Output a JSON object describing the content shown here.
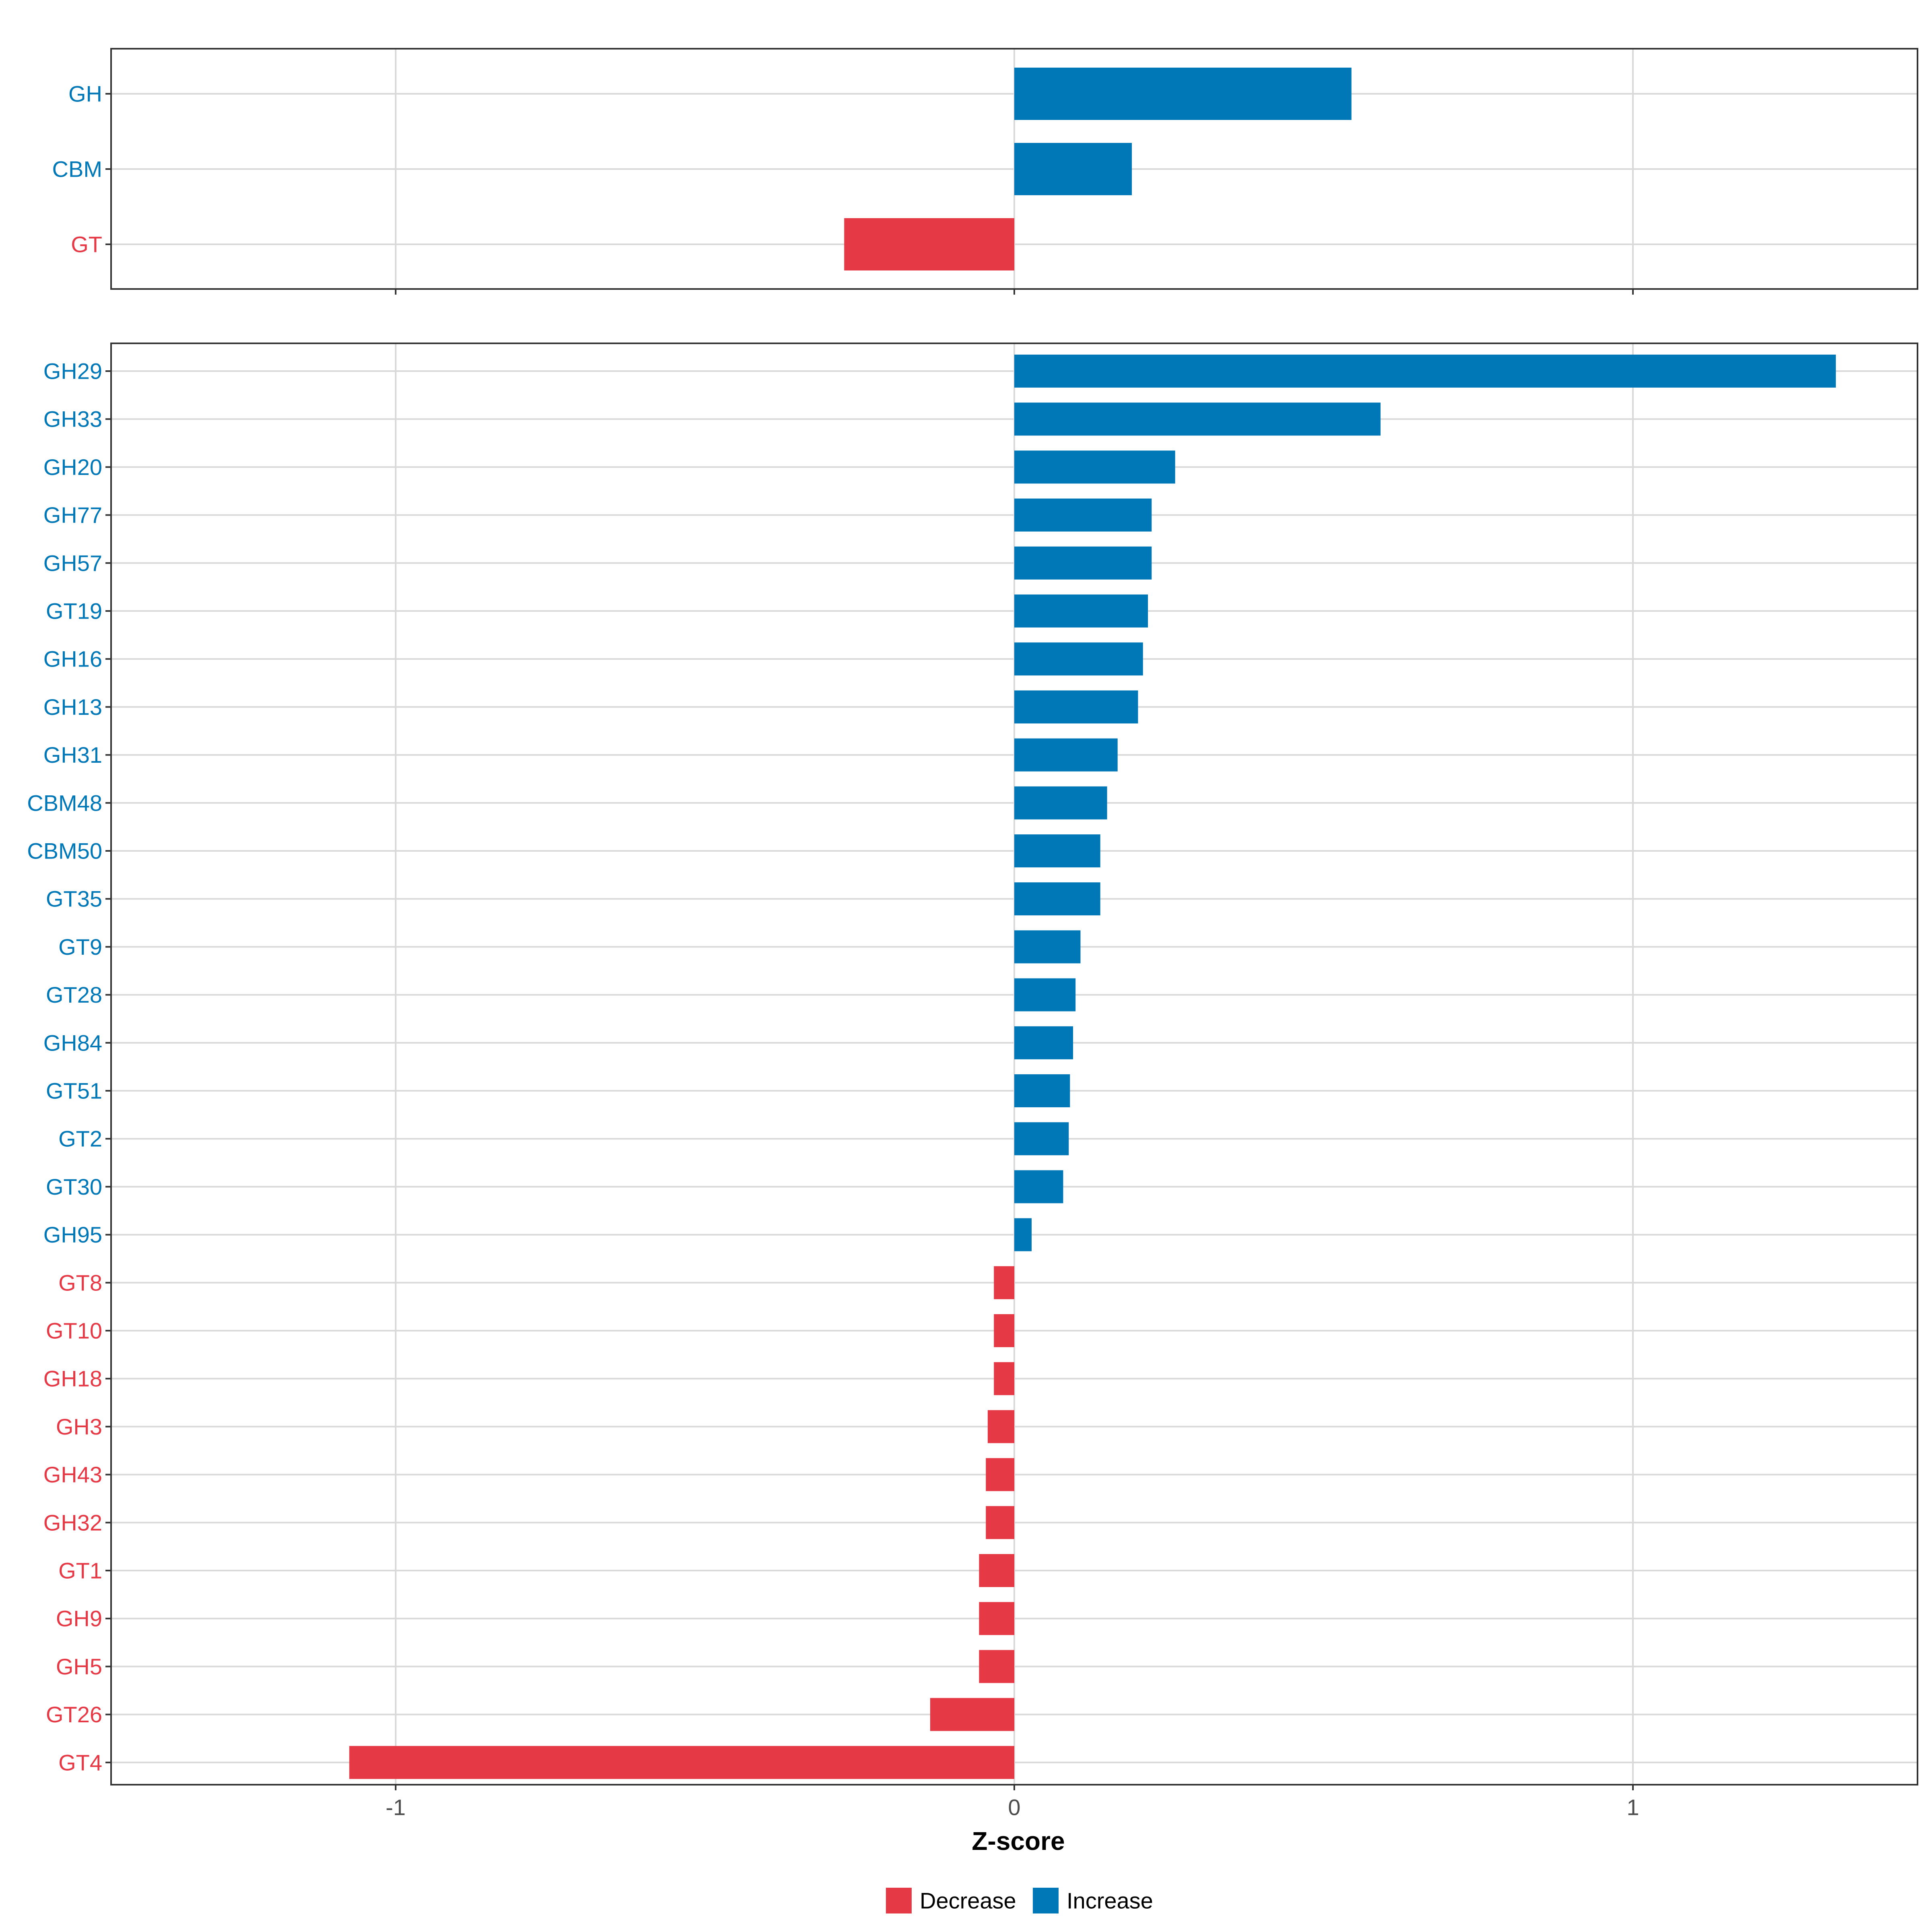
{
  "chart_data": [
    {
      "type": "bar",
      "orientation": "horizontal",
      "panel": "top",
      "categories": [
        "GH",
        "CBM",
        "GT"
      ],
      "values": [
        0.545,
        0.19,
        -0.275
      ],
      "groups": [
        "Increase",
        "Increase",
        "Decrease"
      ],
      "xlim": [
        -1.46,
        1.46
      ],
      "xticks": [
        -1,
        0,
        1
      ],
      "grid": true
    },
    {
      "type": "bar",
      "orientation": "horizontal",
      "panel": "bottom",
      "categories": [
        "GH29",
        "GH33",
        "GH20",
        "GH77",
        "GH57",
        "GT19",
        "GH16",
        "GH13",
        "GH31",
        "CBM48",
        "CBM50",
        "GT35",
        "GT9",
        "GT28",
        "GH84",
        "GT51",
        "GT2",
        "GT30",
        "GH95",
        "GT8",
        "GT10",
        "GH18",
        "GH3",
        "GH43",
        "GH32",
        "GT1",
        "GH9",
        "GH5",
        "GT26",
        "GT4"
      ],
      "values": [
        1.328,
        0.592,
        0.26,
        0.222,
        0.222,
        0.216,
        0.208,
        0.2,
        0.167,
        0.15,
        0.139,
        0.139,
        0.107,
        0.099,
        0.095,
        0.09,
        0.088,
        0.079,
        0.028,
        -0.033,
        -0.033,
        -0.033,
        -0.043,
        -0.046,
        -0.046,
        -0.057,
        -0.057,
        -0.057,
        -0.136,
        -1.075
      ],
      "groups": [
        "Increase",
        "Increase",
        "Increase",
        "Increase",
        "Increase",
        "Increase",
        "Increase",
        "Increase",
        "Increase",
        "Increase",
        "Increase",
        "Increase",
        "Increase",
        "Increase",
        "Increase",
        "Increase",
        "Increase",
        "Increase",
        "Increase",
        "Decrease",
        "Decrease",
        "Decrease",
        "Decrease",
        "Decrease",
        "Decrease",
        "Decrease",
        "Decrease",
        "Decrease",
        "Decrease",
        "Decrease"
      ],
      "xlim": [
        -1.46,
        1.46
      ],
      "xticks": [
        -1,
        0,
        1
      ],
      "xlabel": "Z-score",
      "grid": true
    }
  ],
  "tick_labels": [
    "-1",
    "0",
    "1"
  ],
  "legend": {
    "position": "bottom",
    "items": [
      {
        "label": "Decrease",
        "color": "#E63946"
      },
      {
        "label": "Increase",
        "color": "#0077B6"
      }
    ]
  },
  "colors": {
    "Increase": "#0077B6",
    "Decrease": "#E63946",
    "grid": "#D9D9D9",
    "border": "#333333",
    "tick_text": "#4D4D4D"
  }
}
